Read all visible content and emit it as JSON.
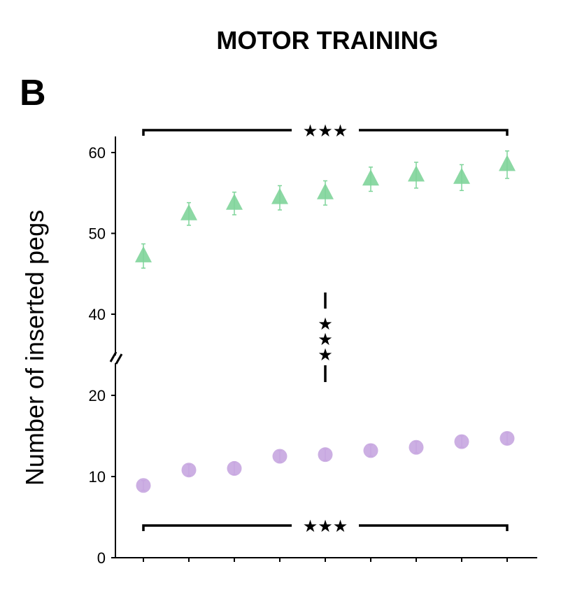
{
  "title": "MOTOR TRAINING",
  "panel_label": "B",
  "chart_data": {
    "type": "scatter",
    "title": "MOTOR TRAINING",
    "xlabel": "",
    "ylabel": "Number of inserted pegs",
    "y_ticks": [
      0,
      10,
      20,
      40,
      50,
      60
    ],
    "y_axis_break": [
      25,
      35
    ],
    "ylim": [
      0,
      62
    ],
    "x": [
      1,
      2,
      3,
      4,
      5,
      6,
      7,
      8,
      9
    ],
    "series": [
      {
        "marker": "triangle",
        "color": "#7fd49a",
        "values": [
          47.2,
          52.4,
          53.7,
          54.4,
          55.0,
          56.7,
          57.2,
          56.9,
          58.5
        ],
        "errors": [
          1.5,
          1.4,
          1.4,
          1.5,
          1.5,
          1.5,
          1.6,
          1.6,
          1.7
        ]
      },
      {
        "marker": "circle",
        "color": "#c7a6e0",
        "values": [
          8.9,
          10.8,
          11.0,
          12.5,
          12.7,
          13.2,
          13.6,
          14.3,
          14.7
        ],
        "errors": [
          0.6,
          0.7,
          0.8,
          0.7,
          0.7,
          0.7,
          0.7,
          0.7,
          0.7
        ]
      }
    ],
    "significance": [
      {
        "between": "first and last point of upper series",
        "label": "★★★"
      },
      {
        "between": "upper and lower series",
        "label": "★★★"
      },
      {
        "between": "first and last point of lower series",
        "label": "★★★"
      }
    ],
    "grid": false
  }
}
